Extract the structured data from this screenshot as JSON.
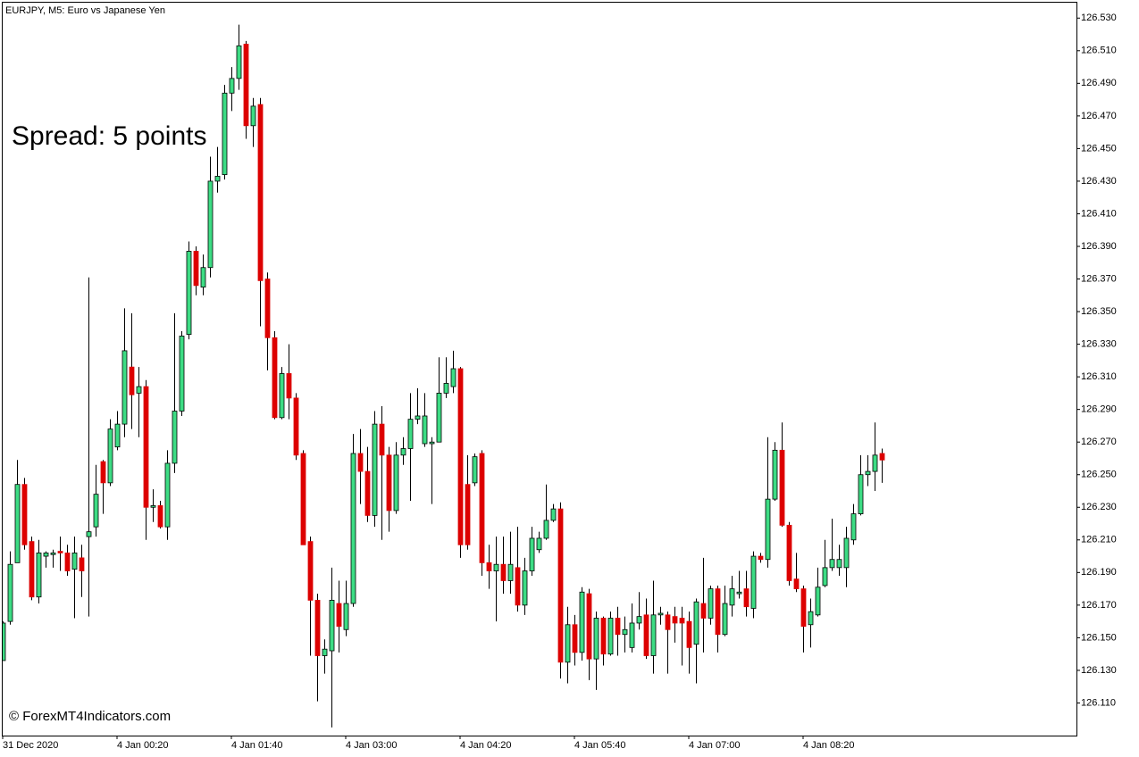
{
  "chart_data": {
    "type": "candlestick",
    "title": "EURJPY, M5:  Euro vs Japanese Yen",
    "annotation": "Spread: 5 points",
    "watermark": "© ForexMT4Indicators.com",
    "up_color": "#3ddc84",
    "down_color": "#dd0000",
    "wick_color": "#000000",
    "categories": [
      "31 Dec 2020",
      null,
      null,
      null,
      null,
      null,
      null,
      null,
      null,
      null,
      null,
      null,
      null,
      null,
      null,
      null,
      "4 Jan 00:20",
      null,
      null,
      null,
      null,
      null,
      null,
      null,
      null,
      null,
      null,
      null,
      null,
      null,
      null,
      null,
      "4 Jan 01:40",
      null,
      null,
      null,
      null,
      null,
      null,
      null,
      null,
      null,
      null,
      null,
      null,
      null,
      null,
      null,
      "4 Jan 03:00",
      null,
      null,
      null,
      null,
      null,
      null,
      null,
      null,
      null,
      null,
      null,
      null,
      null,
      null,
      null,
      "4 Jan 04:20",
      null,
      null,
      null,
      null,
      null,
      null,
      null,
      null,
      null,
      null,
      null,
      null,
      null,
      null,
      null,
      "4 Jan 05:40",
      null,
      null,
      null,
      null,
      null,
      null,
      null,
      null,
      null,
      null,
      null,
      null,
      null,
      null,
      null,
      "4 Jan 07:00",
      null,
      null,
      null,
      null,
      null,
      null,
      null,
      null,
      null,
      null,
      null,
      null,
      null,
      null,
      null,
      "4 Jan 08:20",
      null,
      null,
      null,
      null,
      null,
      null,
      null,
      null,
      null,
      null,
      null
    ],
    "open": [
      126.136,
      126.16,
      126.196,
      126.244,
      126.209,
      126.175,
      126.2,
      126.201,
      126.203,
      126.202,
      126.192,
      126.199,
      126.212,
      126.218,
      126.258,
      126.245,
      126.267,
      126.281,
      126.316,
      126.3,
      126.304,
      126.23,
      126.231,
      126.218,
      126.257,
      126.289,
      126.336,
      126.387,
      126.365,
      126.377,
      126.43,
      126.434,
      126.484,
      126.493,
      126.514,
      126.464,
      126.477,
      126.37,
      126.334,
      126.285,
      126.312,
      126.297,
      126.263,
      126.209,
      126.173,
      126.139,
      126.142,
      126.171,
      126.155,
      126.171,
      126.263,
      126.252,
      126.225,
      126.281,
      126.262,
      126.228,
      126.262,
      126.266,
      126.284,
      126.269,
      126.269,
      126.27,
      126.3,
      126.304,
      126.315,
      126.244,
      126.245,
      126.263,
      126.196,
      126.191,
      126.195,
      126.185,
      126.193,
      126.17,
      126.191,
      126.204,
      126.211,
      126.222,
      126.229,
      126.135,
      126.158,
      126.141,
      126.177,
      126.137,
      126.162,
      126.14,
      126.162,
      126.152,
      126.144,
      126.159,
      126.164,
      126.139,
      126.164,
      126.164,
      126.163,
      126.162,
      126.16,
      126.146,
      126.171,
      126.162,
      126.18,
      126.152,
      126.17,
      126.177,
      126.18,
      126.168,
      126.2,
      126.198,
      126.235,
      126.265,
      126.219,
      126.186,
      126.18,
      126.158,
      126.164,
      126.182,
      126.193,
      126.193,
      126.193,
      126.21,
      126.226,
      126.25,
      126.252,
      126.263
    ],
    "high": [
      126.16,
      126.203,
      126.259,
      126.248,
      126.212,
      126.21,
      126.203,
      126.204,
      126.212,
      126.207,
      126.212,
      126.207,
      126.371,
      126.256,
      126.259,
      126.284,
      126.289,
      126.352,
      126.349,
      126.316,
      126.308,
      126.241,
      126.234,
      126.265,
      126.349,
      126.338,
      126.393,
      126.39,
      126.385,
      126.445,
      126.451,
      126.489,
      126.5,
      126.526,
      126.516,
      126.481,
      126.481,
      126.374,
      126.338,
      126.316,
      126.33,
      126.3,
      126.265,
      126.212,
      126.177,
      126.149,
      126.193,
      126.185,
      126.185,
      126.275,
      126.278,
      126.267,
      126.289,
      126.292,
      126.267,
      126.27,
      126.273,
      126.3,
      126.303,
      126.3,
      126.273,
      126.322,
      126.322,
      126.326,
      126.316,
      126.262,
      126.263,
      126.265,
      126.207,
      126.212,
      126.212,
      126.215,
      126.218,
      126.199,
      126.218,
      126.215,
      126.244,
      126.232,
      126.233,
      126.169,
      126.164,
      126.181,
      126.18,
      126.166,
      126.163,
      126.166,
      126.169,
      126.163,
      126.171,
      126.178,
      126.174,
      126.185,
      126.169,
      126.166,
      126.169,
      126.169,
      126.166,
      126.174,
      126.199,
      126.182,
      126.182,
      126.182,
      126.188,
      126.191,
      126.191,
      126.203,
      126.202,
      126.273,
      126.27,
      126.282,
      126.221,
      126.202,
      126.182,
      126.174,
      126.193,
      126.21,
      126.223,
      126.207,
      126.218,
      126.232,
      126.262,
      126.262,
      126.282,
      126.266
    ],
    "low": [
      126.136,
      126.158,
      126.196,
      126.204,
      126.173,
      126.171,
      126.193,
      126.193,
      126.191,
      126.188,
      126.162,
      126.175,
      126.163,
      126.212,
      126.226,
      126.243,
      126.265,
      126.273,
      126.278,
      126.273,
      126.21,
      126.221,
      126.217,
      126.21,
      126.251,
      126.286,
      126.333,
      126.36,
      126.36,
      126.371,
      126.423,
      126.431,
      126.473,
      126.486,
      126.456,
      126.451,
      126.341,
      126.314,
      126.284,
      126.284,
      126.284,
      126.259,
      126.207,
      126.139,
      126.111,
      126.128,
      126.095,
      126.141,
      126.151,
      126.169,
      126.232,
      126.221,
      126.218,
      126.21,
      126.215,
      126.226,
      126.256,
      126.234,
      126.281,
      126.267,
      126.232,
      126.27,
      126.297,
      126.3,
      126.199,
      126.204,
      126.243,
      126.188,
      126.18,
      126.16,
      126.177,
      126.177,
      126.166,
      126.164,
      126.188,
      126.202,
      126.21,
      126.221,
      126.125,
      126.122,
      126.133,
      126.136,
      126.124,
      126.118,
      126.133,
      126.139,
      126.139,
      126.141,
      126.141,
      126.155,
      126.137,
      126.128,
      126.158,
      126.128,
      126.147,
      126.133,
      126.128,
      126.122,
      126.141,
      126.158,
      126.141,
      126.151,
      126.163,
      126.174,
      126.163,
      126.162,
      126.196,
      126.193,
      126.234,
      126.218,
      126.182,
      126.178,
      126.141,
      126.144,
      126.163,
      126.181,
      126.191,
      126.188,
      126.181,
      126.207,
      126.225,
      126.243,
      126.24,
      126.245
    ],
    "close": [
      126.159,
      126.195,
      126.244,
      126.207,
      126.175,
      126.202,
      126.202,
      126.202,
      126.202,
      126.191,
      126.202,
      126.191,
      126.215,
      126.238,
      126.245,
      126.278,
      126.281,
      126.326,
      126.299,
      126.304,
      126.23,
      126.231,
      126.218,
      126.257,
      126.289,
      126.335,
      126.387,
      126.366,
      126.377,
      126.43,
      126.433,
      126.484,
      126.493,
      126.513,
      126.464,
      126.476,
      126.369,
      126.334,
      126.285,
      126.312,
      126.297,
      126.262,
      126.207,
      126.173,
      126.139,
      126.143,
      126.173,
      126.157,
      126.171,
      126.263,
      126.252,
      126.225,
      126.281,
      126.262,
      126.228,
      126.262,
      126.266,
      126.284,
      126.286,
      126.286,
      126.27,
      126.3,
      126.306,
      126.315,
      126.207,
      126.207,
      126.261,
      126.196,
      126.191,
      126.195,
      126.185,
      126.195,
      126.17,
      126.191,
      126.211,
      126.211,
      126.222,
      126.229,
      126.135,
      126.158,
      126.141,
      126.178,
      126.137,
      126.162,
      126.14,
      126.162,
      126.152,
      126.155,
      126.159,
      126.163,
      126.139,
      126.164,
      126.165,
      126.155,
      126.159,
      126.159,
      126.144,
      126.172,
      126.162,
      126.18,
      126.152,
      126.171,
      126.18,
      126.178,
      126.169,
      126.2,
      126.198,
      126.235,
      126.265,
      126.219,
      126.185,
      126.18,
      126.157,
      126.166,
      126.181,
      126.193,
      126.198,
      126.198,
      126.211,
      126.226,
      126.25,
      126.252,
      126.262,
      126.259
    ],
    "ylim": [
      126.09,
      126.54
    ],
    "yticks": [
      {
        "value": 126.11,
        "label": "126.110"
      },
      {
        "value": 126.13,
        "label": "126.130"
      },
      {
        "value": 126.15,
        "label": "126.150"
      },
      {
        "value": 126.17,
        "label": "126.170"
      },
      {
        "value": 126.19,
        "label": "126.190"
      },
      {
        "value": 126.21,
        "label": "126.210"
      },
      {
        "value": 126.23,
        "label": "126.230"
      },
      {
        "value": 126.25,
        "label": "126.250"
      },
      {
        "value": 126.27,
        "label": "126.270"
      },
      {
        "value": 126.29,
        "label": "126.290"
      },
      {
        "value": 126.31,
        "label": "126.310"
      },
      {
        "value": 126.33,
        "label": "126.330"
      },
      {
        "value": 126.35,
        "label": "126.350"
      },
      {
        "value": 126.37,
        "label": "126.370"
      },
      {
        "value": 126.39,
        "label": "126.390"
      },
      {
        "value": 126.41,
        "label": "126.410"
      },
      {
        "value": 126.43,
        "label": "126.430"
      },
      {
        "value": 126.45,
        "label": "126.450"
      },
      {
        "value": 126.47,
        "label": "126.470"
      },
      {
        "value": 126.49,
        "label": "126.490"
      },
      {
        "value": 126.51,
        "label": "126.510"
      },
      {
        "value": 126.53,
        "label": "126.530"
      }
    ],
    "grid": false
  }
}
